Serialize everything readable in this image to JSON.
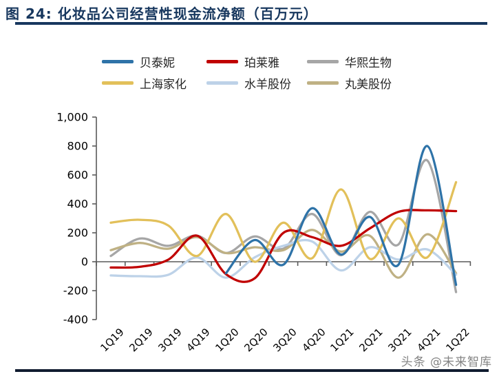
{
  "title": "图 24: 化妆品公司经营性现金流净额（百万元）",
  "watermark": "头条 @未来智库",
  "colors": {
    "title_navy": "#17375E",
    "axis_gray": "#595959",
    "beitaini_blue": "#2E73A8",
    "bolaiya_red": "#C00000",
    "huaxi_gray": "#A6A6A6",
    "jiahua_gold": "#E2C05A",
    "shuiyang_lightblue": "#BDD2E8",
    "wanmei_tan": "#BFB184"
  },
  "chart_data": {
    "type": "line",
    "title": "图 24: 化妆品公司经营性现金流净额（百万元）",
    "unit": "百万元",
    "categories": [
      "1Q19",
      "2Q19",
      "3Q19",
      "4Q19",
      "1Q20",
      "2Q20",
      "3Q20",
      "4Q20",
      "1Q21",
      "2Q21",
      "3Q21",
      "4Q21",
      "1Q22"
    ],
    "series": [
      {
        "name": "贝泰妮",
        "color": "#2E73A8",
        "values": [
          null,
          null,
          null,
          null,
          -80,
          150,
          -20,
          370,
          50,
          310,
          -20,
          800,
          -160
        ]
      },
      {
        "name": "珀莱雅",
        "color": "#C00000",
        "values": [
          -40,
          -35,
          15,
          180,
          -85,
          -115,
          200,
          170,
          110,
          230,
          345,
          355,
          350
        ]
      },
      {
        "name": "华熙生物",
        "color": "#A6A6A6",
        "values": [
          40,
          160,
          110,
          180,
          60,
          175,
          90,
          330,
          45,
          345,
          120,
          700,
          -210
        ]
      },
      {
        "name": "上海家化",
        "color": "#E2C05A",
        "values": [
          270,
          290,
          250,
          40,
          330,
          0,
          270,
          25,
          500,
          20,
          300,
          30,
          550
        ]
      },
      {
        "name": "水羊股份",
        "color": "#BDD2E8",
        "values": [
          -95,
          -100,
          -90,
          30,
          -110,
          30,
          110,
          140,
          -60,
          100,
          15,
          85,
          -90
        ]
      },
      {
        "name": "丸美股份",
        "color": "#BFB184",
        "values": [
          80,
          130,
          90,
          170,
          60,
          100,
          80,
          220,
          70,
          180,
          -110,
          190,
          -80
        ]
      }
    ],
    "legend_order": [
      "贝泰妮",
      "珀莱雅",
      "华熙生物",
      "上海家化",
      "水羊股份",
      "丸美股份"
    ],
    "legend_position": "top-center",
    "ylim": [
      -400,
      1000
    ],
    "ytick_labels": [
      "1,000",
      "800",
      "600",
      "400",
      "200",
      "0",
      "-200",
      "-400"
    ],
    "ytick_values": [
      1000,
      800,
      600,
      400,
      200,
      0,
      -200,
      -400
    ],
    "grid": "off",
    "line_style": "smooth"
  }
}
